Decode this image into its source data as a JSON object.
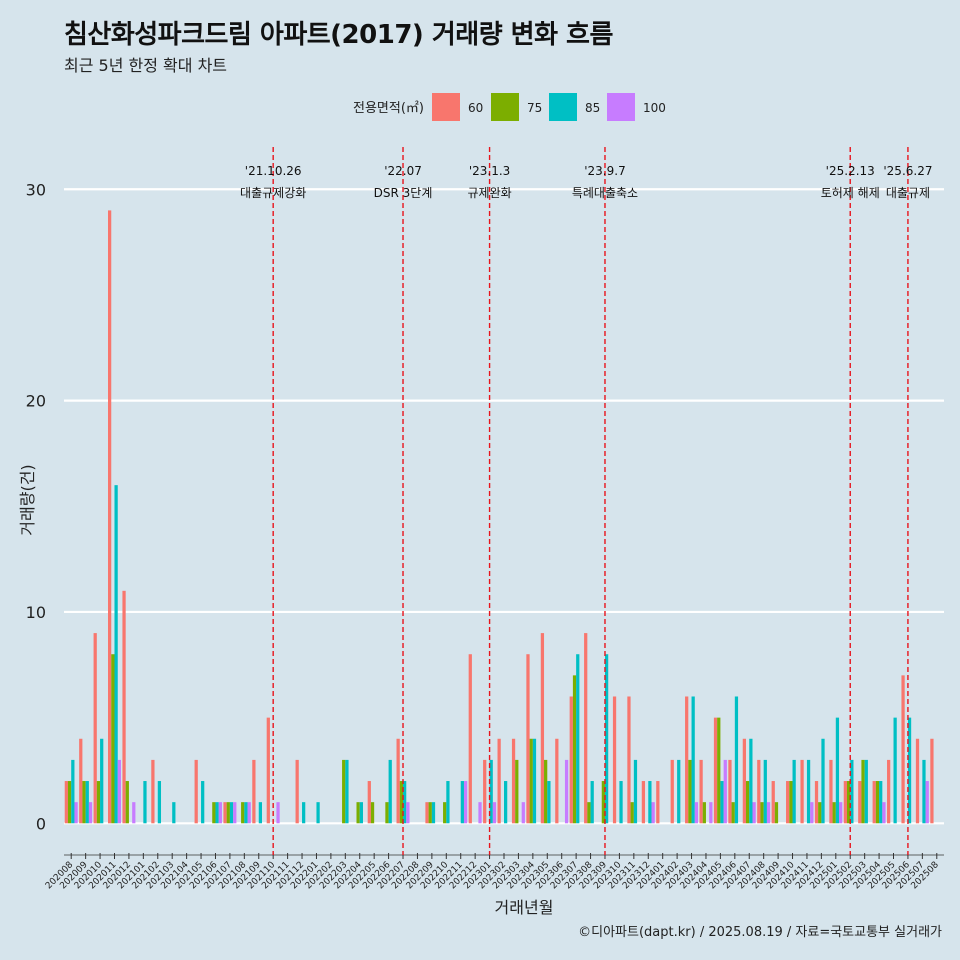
{
  "chart_data": {
    "type": "bar",
    "title": "침산화성파크드림 아파트(2017) 거래량 변화 흐름",
    "subtitle": "최근 5년 한정 확대 차트",
    "xlabel": "거래년월",
    "ylabel": "거래량(건)",
    "caption": "©디아파트(dapt.kr) / 2025.08.19 / 자료=국토교통부 실거래가",
    "legend": {
      "title": "전용면적(㎡)",
      "position": "top"
    },
    "ylim": [
      -1.5,
      32
    ],
    "yticks": [
      0,
      10,
      20,
      30
    ],
    "grid": true,
    "categories": [
      "202008",
      "202009",
      "202010",
      "202011",
      "202012",
      "202101",
      "202102",
      "202103",
      "202104",
      "202105",
      "202106",
      "202107",
      "202108",
      "202109",
      "202110",
      "202111",
      "202112",
      "202201",
      "202202",
      "202203",
      "202204",
      "202205",
      "202206",
      "202207",
      "202208",
      "202209",
      "202210",
      "202211",
      "202212",
      "202301",
      "202302",
      "202303",
      "202304",
      "202305",
      "202306",
      "202307",
      "202308",
      "202309",
      "202310",
      "202311",
      "202312",
      "202401",
      "202402",
      "202403",
      "202404",
      "202405",
      "202406",
      "202407",
      "202408",
      "202409",
      "202410",
      "202411",
      "202412",
      "202501",
      "202502",
      "202503",
      "202504",
      "202505",
      "202506",
      "202507",
      "202508"
    ],
    "series": [
      {
        "name": "60",
        "color": "#f8766d",
        "values": [
          2,
          4,
          9,
          29,
          11,
          0,
          3,
          0,
          0,
          3,
          0,
          1,
          0,
          3,
          5,
          0,
          3,
          0,
          0,
          0,
          0,
          2,
          0,
          4,
          0,
          1,
          0,
          0,
          8,
          3,
          4,
          4,
          8,
          9,
          4,
          6,
          9,
          0,
          6,
          6,
          2,
          2,
          3,
          6,
          3,
          5,
          3,
          4,
          3,
          2,
          2,
          3,
          2,
          3,
          2,
          2,
          2,
          3,
          7,
          4,
          4
        ]
      },
      {
        "name": "75",
        "color": "#7cae00",
        "values": [
          2,
          2,
          2,
          8,
          2,
          0,
          0,
          0,
          0,
          0,
          1,
          1,
          1,
          0,
          0,
          0,
          0,
          0,
          0,
          3,
          1,
          1,
          1,
          2,
          0,
          1,
          1,
          0,
          0,
          0,
          0,
          3,
          4,
          3,
          0,
          7,
          1,
          2,
          0,
          1,
          0,
          0,
          0,
          3,
          1,
          5,
          1,
          2,
          1,
          1,
          2,
          0,
          1,
          1,
          2,
          3,
          2,
          0,
          0,
          0,
          0
        ]
      },
      {
        "name": "85",
        "color": "#00bfc4",
        "values": [
          3,
          2,
          4,
          16,
          0,
          2,
          2,
          1,
          0,
          2,
          1,
          1,
          1,
          1,
          0,
          0,
          1,
          1,
          0,
          3,
          1,
          0,
          3,
          2,
          0,
          1,
          2,
          2,
          0,
          3,
          2,
          0,
          4,
          2,
          0,
          8,
          2,
          8,
          2,
          3,
          2,
          0,
          3,
          6,
          0,
          2,
          6,
          4,
          3,
          0,
          3,
          3,
          4,
          5,
          3,
          3,
          2,
          5,
          5,
          3,
          0
        ]
      },
      {
        "name": "100",
        "color": "#c77cff",
        "values": [
          1,
          1,
          0,
          3,
          1,
          0,
          0,
          0,
          0,
          0,
          1,
          1,
          1,
          0,
          1,
          0,
          0,
          0,
          0,
          0,
          0,
          0,
          0,
          1,
          0,
          0,
          0,
          2,
          1,
          1,
          0,
          1,
          0,
          0,
          3,
          0,
          0,
          0,
          0,
          0,
          1,
          0,
          0,
          1,
          1,
          3,
          0,
          1,
          1,
          0,
          0,
          1,
          0,
          1,
          0,
          0,
          1,
          0,
          0,
          2,
          0
        ]
      }
    ],
    "events": [
      {
        "date": "'21.10.26",
        "label": "대출규제강화",
        "category": "202110"
      },
      {
        "date": "'22.07",
        "label": "DSR 3단계",
        "category": "202207"
      },
      {
        "date": "'23.1.3",
        "label": "규제완화",
        "category": "202301"
      },
      {
        "date": "'23.9.7",
        "label": "특례대출축소",
        "category": "202309"
      },
      {
        "date": "'25.2.13",
        "label": "토허제 해제",
        "category": "202502"
      },
      {
        "date": "'25.6.27",
        "label": "대출규제",
        "category": "202506"
      }
    ]
  }
}
